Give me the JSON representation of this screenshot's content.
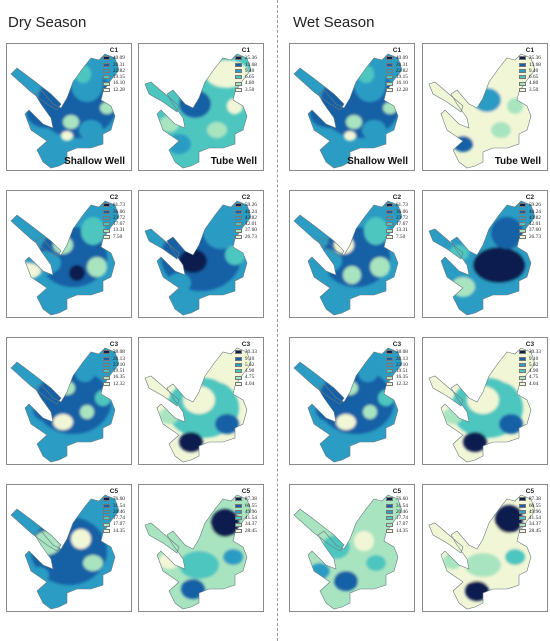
{
  "seasons": [
    "Dry Season",
    "Wet Season"
  ],
  "well_labels": [
    "Shallow Well",
    "Tube Well"
  ],
  "palette": [
    "#0d1f4f",
    "#1560a6",
    "#2b9cc4",
    "#4dc6c0",
    "#a8e4c0",
    "#f1f6d6"
  ],
  "rows": [
    {
      "component": "C1",
      "shallow_legend": [
        "40.09",
        "28.31",
        "22.82",
        "19.15",
        "16.10",
        "12.28"
      ],
      "tube_legend": [
        "25.36",
        "13.68",
        "9.40",
        "6.65",
        "4.80",
        "3.50"
      ]
    },
    {
      "component": "C2",
      "shallow_legend": [
        "61.73",
        "36.06",
        "23.72",
        "17.67",
        "13.31",
        "7.50"
      ],
      "tube_legend": [
        "59.26",
        "48.24",
        "43.82",
        "42.01",
        "37.60",
        "26.73"
      ]
    },
    {
      "component": "C3",
      "shallow_legend": [
        "38.08",
        "28.13",
        "23.10",
        "19.51",
        "16.35",
        "12.32"
      ],
      "tube_legend": [
        "30.33",
        "9.10",
        "5.62",
        "4.90",
        "4.75",
        "4.04"
      ]
    },
    {
      "component": "C5",
      "shallow_legend": [
        "76.60",
        "31.54",
        "20.46",
        "17.74",
        "17.07",
        "14.35"
      ],
      "tube_legend": [
        "87.38",
        "60.55",
        "49.96",
        "41.54",
        "34.37",
        "28.45"
      ]
    }
  ]
}
